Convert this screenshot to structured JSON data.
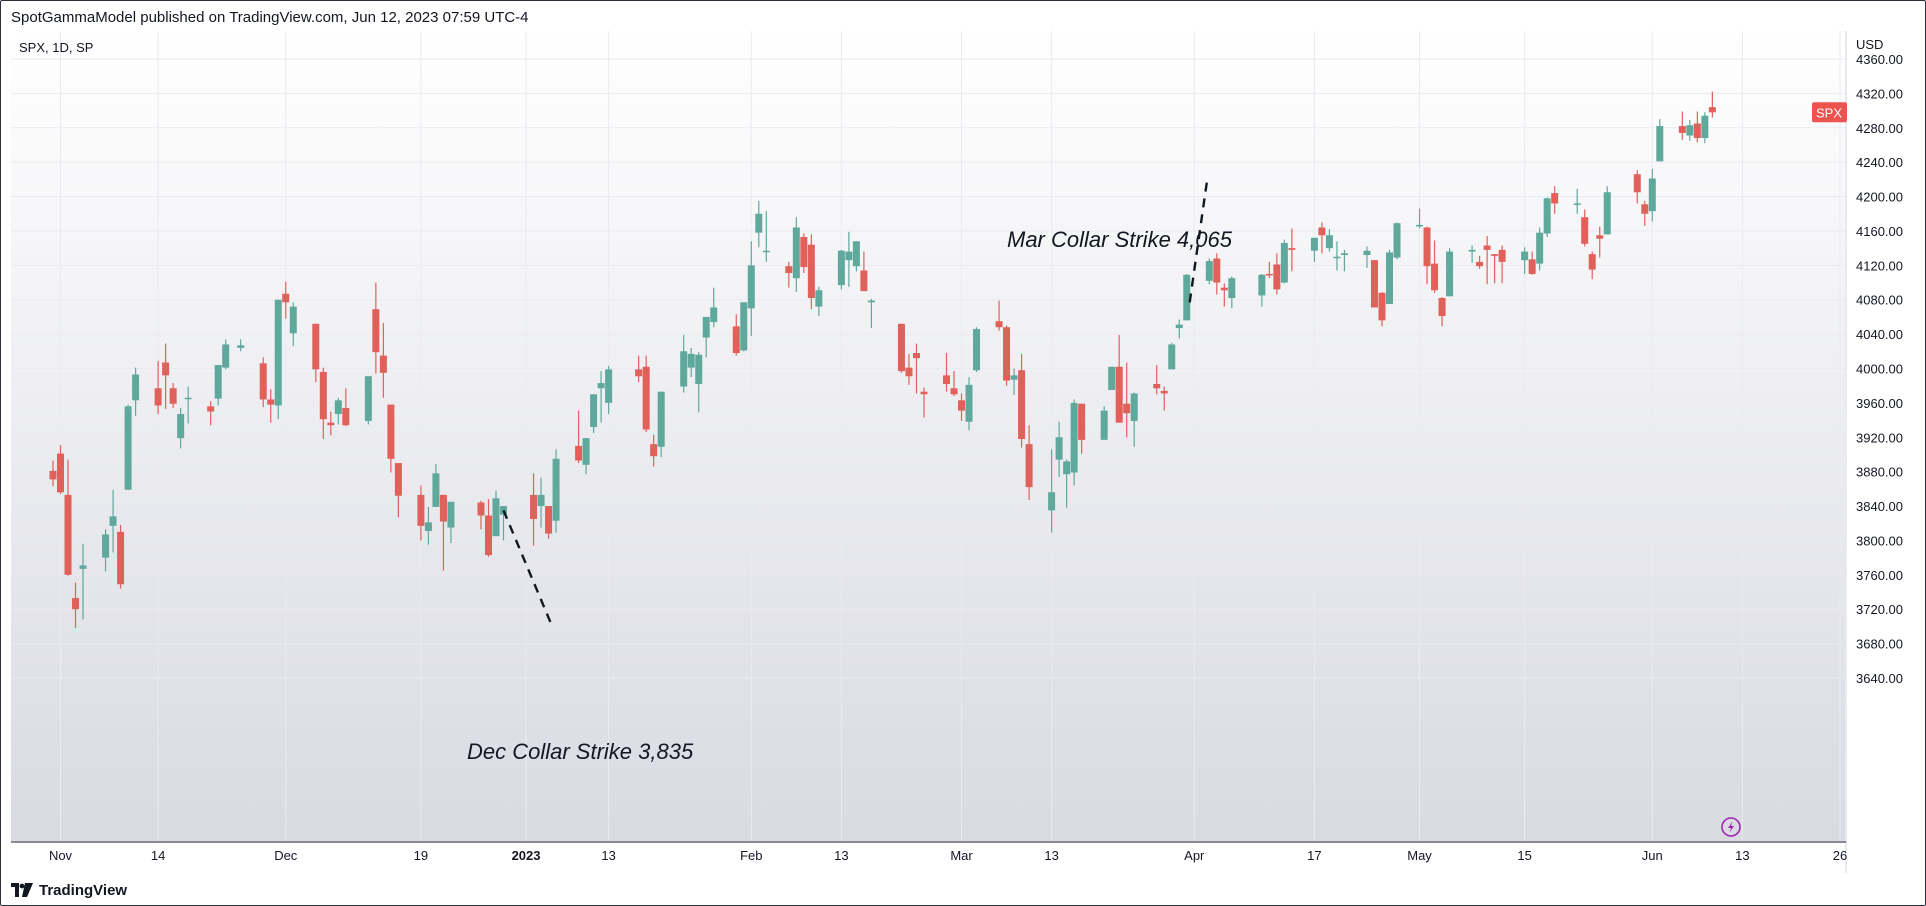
{
  "header": {
    "published": "SpotGammaModel published on TradingView.com, Jun 12, 2023 07:59 UTC-4"
  },
  "footer": {
    "brand": "TradingView",
    "logo_icon": "tradingview-logo-icon"
  },
  "legend": {
    "symbol": "SPX, 1D, SP"
  },
  "price_axis": {
    "currency": "USD",
    "ticks": [
      "4360.00",
      "4320.00",
      "4280.00",
      "4240.00",
      "4200.00",
      "4160.00",
      "4120.00",
      "4080.00",
      "4040.00",
      "4000.00",
      "3960.00",
      "3920.00",
      "3880.00",
      "3840.00",
      "3800.00",
      "3760.00",
      "3720.00",
      "3680.00",
      "3640.00"
    ]
  },
  "price_label": {
    "text": "SPX",
    "color": "#ef5350"
  },
  "time_axis": {
    "labels": [
      "Nov",
      "14",
      "Dec",
      "19",
      "2023",
      "13",
      "Feb",
      "13",
      "Mar",
      "13",
      "Apr",
      "17",
      "May",
      "15",
      "Jun",
      "13",
      "26"
    ]
  },
  "annotations": {
    "dec": "Dec Collar Strike 3,835",
    "mar": "Mar Collar Strike 4,065"
  },
  "colors": {
    "up": "#5fa89c",
    "down": "#e0605a",
    "grid": "#e9ebf0",
    "text": "#131722",
    "bg_top": "#ffffff",
    "bg_bottom": "#d9dae2"
  },
  "chart_data": {
    "type": "candlestick",
    "symbol": "SPX",
    "interval": "1D",
    "ylabel": "USD",
    "ylim": [
      3640,
      4360
    ],
    "xlim": [
      "2022-10-31",
      "2023-06-26"
    ],
    "grid": true,
    "annotations": [
      {
        "text": "Dec Collar Strike 3,835",
        "points_to": "2022-12-30",
        "value": 3835
      },
      {
        "text": "Mar Collar Strike 4,065",
        "points_to": "2023-03-31",
        "value": 4065
      }
    ],
    "candles": [
      {
        "d": "2022-10-31",
        "o": 3881,
        "h": 3893,
        "l": 3863,
        "c": 3871
      },
      {
        "d": "2022-11-01",
        "o": 3901,
        "h": 3911,
        "l": 3854,
        "c": 3856
      },
      {
        "d": "2022-11-02",
        "o": 3853,
        "h": 3894,
        "l": 3759,
        "c": 3760
      },
      {
        "d": "2022-11-03",
        "o": 3733,
        "h": 3751,
        "l": 3698,
        "c": 3720
      },
      {
        "d": "2022-11-04",
        "o": 3767,
        "h": 3796,
        "l": 3708,
        "c": 3771
      },
      {
        "d": "2022-11-07",
        "o": 3780,
        "h": 3813,
        "l": 3764,
        "c": 3807
      },
      {
        "d": "2022-11-08",
        "o": 3817,
        "h": 3859,
        "l": 3786,
        "c": 3828
      },
      {
        "d": "2022-11-09",
        "o": 3810,
        "h": 3818,
        "l": 3744,
        "c": 3749
      },
      {
        "d": "2022-11-10",
        "o": 3859,
        "h": 3958,
        "l": 3859,
        "c": 3956
      },
      {
        "d": "2022-11-11",
        "o": 3963,
        "h": 4001,
        "l": 3945,
        "c": 3993
      },
      {
        "d": "2022-11-14",
        "o": 3977,
        "h": 4009,
        "l": 3947,
        "c": 3957
      },
      {
        "d": "2022-11-15",
        "o": 4007,
        "h": 4029,
        "l": 3953,
        "c": 3992
      },
      {
        "d": "2022-11-16",
        "o": 3977,
        "h": 3983,
        "l": 3954,
        "c": 3959
      },
      {
        "d": "2022-11-17",
        "o": 3919,
        "h": 3954,
        "l": 3907,
        "c": 3947
      },
      {
        "d": "2022-11-18",
        "o": 3966,
        "h": 3979,
        "l": 3936,
        "c": 3966
      },
      {
        "d": "2022-11-21",
        "o": 3956,
        "h": 3962,
        "l": 3934,
        "c": 3950
      },
      {
        "d": "2022-11-22",
        "o": 3965,
        "h": 4004,
        "l": 3957,
        "c": 4004
      },
      {
        "d": "2022-11-23",
        "o": 4001,
        "h": 4034,
        "l": 3999,
        "c": 4028
      },
      {
        "d": "2022-11-25",
        "o": 4024,
        "h": 4034,
        "l": 4020,
        "c": 4027
      },
      {
        "d": "2022-11-28",
        "o": 4006,
        "h": 4013,
        "l": 3955,
        "c": 3964
      },
      {
        "d": "2022-11-29",
        "o": 3964,
        "h": 3976,
        "l": 3937,
        "c": 3958
      },
      {
        "d": "2022-11-30",
        "o": 3957,
        "h": 4080,
        "l": 3941,
        "c": 4080
      },
      {
        "d": "2022-12-01",
        "o": 4087,
        "h": 4101,
        "l": 4058,
        "c": 4077
      },
      {
        "d": "2022-12-02",
        "o": 4041,
        "h": 4077,
        "l": 4026,
        "c": 4072
      },
      {
        "d": "2022-12-05",
        "o": 4052,
        "h": 4052,
        "l": 3984,
        "c": 3999
      },
      {
        "d": "2022-12-06",
        "o": 3996,
        "h": 4001,
        "l": 3918,
        "c": 3941
      },
      {
        "d": "2022-12-07",
        "o": 3937,
        "h": 3950,
        "l": 3922,
        "c": 3934
      },
      {
        "d": "2022-12-08",
        "o": 3947,
        "h": 3966,
        "l": 3935,
        "c": 3963
      },
      {
        "d": "2022-12-09",
        "o": 3954,
        "h": 3977,
        "l": 3933,
        "c": 3934
      },
      {
        "d": "2022-12-12",
        "o": 3939,
        "h": 3991,
        "l": 3935,
        "c": 3991
      },
      {
        "d": "2022-12-13",
        "o": 4069,
        "h": 4100,
        "l": 3994,
        "c": 4019
      },
      {
        "d": "2022-12-14",
        "o": 4015,
        "h": 4053,
        "l": 3966,
        "c": 3995
      },
      {
        "d": "2022-12-15",
        "o": 3958,
        "h": 3958,
        "l": 3879,
        "c": 3895
      },
      {
        "d": "2022-12-16",
        "o": 3890,
        "h": 3890,
        "l": 3827,
        "c": 3852
      },
      {
        "d": "2022-12-19",
        "o": 3853,
        "h": 3864,
        "l": 3800,
        "c": 3817
      },
      {
        "d": "2022-12-20",
        "o": 3811,
        "h": 3839,
        "l": 3795,
        "c": 3821
      },
      {
        "d": "2022-12-21",
        "o": 3839,
        "h": 3889,
        "l": 3839,
        "c": 3878
      },
      {
        "d": "2022-12-22",
        "o": 3853,
        "h": 3853,
        "l": 3765,
        "c": 3822
      },
      {
        "d": "2022-12-23",
        "o": 3815,
        "h": 3845,
        "l": 3797,
        "c": 3845
      },
      {
        "d": "2022-12-27",
        "o": 3844,
        "h": 3846,
        "l": 3813,
        "c": 3829
      },
      {
        "d": "2022-12-28",
        "o": 3829,
        "h": 3848,
        "l": 3781,
        "c": 3783
      },
      {
        "d": "2022-12-29",
        "o": 3805,
        "h": 3858,
        "l": 3805,
        "c": 3849
      },
      {
        "d": "2022-12-30",
        "o": 3830,
        "h": 3840,
        "l": 3800,
        "c": 3840
      },
      {
        "d": "2023-01-03",
        "o": 3853,
        "h": 3878,
        "l": 3794,
        "c": 3825
      },
      {
        "d": "2023-01-04",
        "o": 3840,
        "h": 3873,
        "l": 3815,
        "c": 3853
      },
      {
        "d": "2023-01-05",
        "o": 3840,
        "h": 3840,
        "l": 3802,
        "c": 3808
      },
      {
        "d": "2023-01-06",
        "o": 3823,
        "h": 3906,
        "l": 3809,
        "c": 3895
      },
      {
        "d": "2023-01-09",
        "o": 3910,
        "h": 3951,
        "l": 3890,
        "c": 3893
      },
      {
        "d": "2023-01-10",
        "o": 3888,
        "h": 3919,
        "l": 3877,
        "c": 3919
      },
      {
        "d": "2023-01-11",
        "o": 3932,
        "h": 3970,
        "l": 3925,
        "c": 3970
      },
      {
        "d": "2023-01-12",
        "o": 3977,
        "h": 3997,
        "l": 3937,
        "c": 3983
      },
      {
        "d": "2023-01-13",
        "o": 3960,
        "h": 4003,
        "l": 3947,
        "c": 3999
      },
      {
        "d": "2023-01-17",
        "o": 3999,
        "h": 4015,
        "l": 3984,
        "c": 3991
      },
      {
        "d": "2023-01-18",
        "o": 4002,
        "h": 4015,
        "l": 3926,
        "c": 3929
      },
      {
        "d": "2023-01-19",
        "o": 3912,
        "h": 3923,
        "l": 3886,
        "c": 3898
      },
      {
        "d": "2023-01-20",
        "o": 3909,
        "h": 3973,
        "l": 3897,
        "c": 3973
      },
      {
        "d": "2023-01-23",
        "o": 3979,
        "h": 4039,
        "l": 3972,
        "c": 4020
      },
      {
        "d": "2023-01-24",
        "o": 4001,
        "h": 4024,
        "l": 3990,
        "c": 4017
      },
      {
        "d": "2023-01-25",
        "o": 3982,
        "h": 4019,
        "l": 3949,
        "c": 4016
      },
      {
        "d": "2023-01-26",
        "o": 4036,
        "h": 4060,
        "l": 4013,
        "c": 4060
      },
      {
        "d": "2023-01-27",
        "o": 4054,
        "h": 4094,
        "l": 4048,
        "c": 4071
      },
      {
        "d": "2023-01-30",
        "o": 4049,
        "h": 4063,
        "l": 4015,
        "c": 4018
      },
      {
        "d": "2023-01-31",
        "o": 4021,
        "h": 4077,
        "l": 4020,
        "c": 4077
      },
      {
        "d": "2023-02-01",
        "o": 4070,
        "h": 4148,
        "l": 4038,
        "c": 4120
      },
      {
        "d": "2023-02-02",
        "o": 4158,
        "h": 4195,
        "l": 4141,
        "c": 4180
      },
      {
        "d": "2023-02-03",
        "o": 4136,
        "h": 4183,
        "l": 4124,
        "c": 4137
      },
      {
        "d": "2023-02-06",
        "o": 4119,
        "h": 4124,
        "l": 4094,
        "c": 4111
      },
      {
        "d": "2023-02-07",
        "o": 4105,
        "h": 4176,
        "l": 4089,
        "c": 4164
      },
      {
        "d": "2023-02-08",
        "o": 4153,
        "h": 4157,
        "l": 4111,
        "c": 4118
      },
      {
        "d": "2023-02-09",
        "o": 4144,
        "h": 4156,
        "l": 4069,
        "c": 4082
      },
      {
        "d": "2023-02-10",
        "o": 4072,
        "h": 4095,
        "l": 4061,
        "c": 4091
      },
      {
        "d": "2023-02-13",
        "o": 4097,
        "h": 4138,
        "l": 4092,
        "c": 4137
      },
      {
        "d": "2023-02-14",
        "o": 4126,
        "h": 4159,
        "l": 4095,
        "c": 4136
      },
      {
        "d": "2023-02-15",
        "o": 4119,
        "h": 4148,
        "l": 4113,
        "c": 4148
      },
      {
        "d": "2023-02-16",
        "o": 4114,
        "h": 4136,
        "l": 4091,
        "c": 4090
      },
      {
        "d": "2023-02-17",
        "o": 4077,
        "h": 4081,
        "l": 4047,
        "c": 4079
      },
      {
        "d": "2023-02-21",
        "o": 4052,
        "h": 4052,
        "l": 3995,
        "c": 3997
      },
      {
        "d": "2023-02-22",
        "o": 4001,
        "h": 4017,
        "l": 3981,
        "c": 3991
      },
      {
        "d": "2023-02-23",
        "o": 4018,
        "h": 4029,
        "l": 3971,
        "c": 4012
      },
      {
        "d": "2023-02-24",
        "o": 3973,
        "h": 3978,
        "l": 3943,
        "c": 3970
      },
      {
        "d": "2023-02-27",
        "o": 3992,
        "h": 4018,
        "l": 3973,
        "c": 3982
      },
      {
        "d": "2023-02-28",
        "o": 3977,
        "h": 3997,
        "l": 3968,
        "c": 3970
      },
      {
        "d": "2023-03-01",
        "o": 3963,
        "h": 3971,
        "l": 3939,
        "c": 3951
      },
      {
        "d": "2023-03-02",
        "o": 3938,
        "h": 3990,
        "l": 3928,
        "c": 3981
      },
      {
        "d": "2023-03-03",
        "o": 3998,
        "h": 4048,
        "l": 3996,
        "c": 4046
      },
      {
        "d": "2023-03-06",
        "o": 4055,
        "h": 4079,
        "l": 4044,
        "c": 4048
      },
      {
        "d": "2023-03-07",
        "o": 4048,
        "h": 4050,
        "l": 3980,
        "c": 3986
      },
      {
        "d": "2023-03-08",
        "o": 3987,
        "h": 4000,
        "l": 3969,
        "c": 3992
      },
      {
        "d": "2023-03-09",
        "o": 3998,
        "h": 4017,
        "l": 3908,
        "c": 3918
      },
      {
        "d": "2023-03-10",
        "o": 3912,
        "h": 3934,
        "l": 3847,
        "c": 3862
      },
      {
        "d": "2023-03-13",
        "o": 3835,
        "h": 3906,
        "l": 3809,
        "c": 3856
      },
      {
        "d": "2023-03-14",
        "o": 3894,
        "h": 3938,
        "l": 3874,
        "c": 3920
      },
      {
        "d": "2023-03-15",
        "o": 3877,
        "h": 3894,
        "l": 3838,
        "c": 3892
      },
      {
        "d": "2023-03-16",
        "o": 3879,
        "h": 3964,
        "l": 3864,
        "c": 3960
      },
      {
        "d": "2023-03-17",
        "o": 3959,
        "h": 3959,
        "l": 3901,
        "c": 3917
      },
      {
        "d": "2023-03-20",
        "o": 3917,
        "h": 3956,
        "l": 3917,
        "c": 3951
      },
      {
        "d": "2023-03-21",
        "o": 3975,
        "h": 4002,
        "l": 3975,
        "c": 4002
      },
      {
        "d": "2023-03-22",
        "o": 4002,
        "h": 4039,
        "l": 3937,
        "c": 3937
      },
      {
        "d": "2023-03-23",
        "o": 3959,
        "h": 4007,
        "l": 3920,
        "c": 3948
      },
      {
        "d": "2023-03-24",
        "o": 3939,
        "h": 3972,
        "l": 3909,
        "c": 3971
      },
      {
        "d": "2023-03-27",
        "o": 3982,
        "h": 4004,
        "l": 3970,
        "c": 3977
      },
      {
        "d": "2023-03-28",
        "o": 3974,
        "h": 3979,
        "l": 3951,
        "c": 3971
      },
      {
        "d": "2023-03-29",
        "o": 3999,
        "h": 4030,
        "l": 3999,
        "c": 4028
      },
      {
        "d": "2023-03-30",
        "o": 4047,
        "h": 4057,
        "l": 4035,
        "c": 4051
      },
      {
        "d": "2023-03-31",
        "o": 4056,
        "h": 4110,
        "l": 4056,
        "c": 4109
      },
      {
        "d": "2023-04-03",
        "o": 4102,
        "h": 4128,
        "l": 4098,
        "c": 4125
      },
      {
        "d": "2023-04-04",
        "o": 4128,
        "h": 4134,
        "l": 4086,
        "c": 4100
      },
      {
        "d": "2023-04-05",
        "o": 4094,
        "h": 4099,
        "l": 4072,
        "c": 4091
      },
      {
        "d": "2023-04-06",
        "o": 4082,
        "h": 4107,
        "l": 4070,
        "c": 4105
      },
      {
        "d": "2023-04-10",
        "o": 4085,
        "h": 4110,
        "l": 4072,
        "c": 4109
      },
      {
        "d": "2023-04-11",
        "o": 4110,
        "h": 4124,
        "l": 4105,
        "c": 4109
      },
      {
        "d": "2023-04-12",
        "o": 4121,
        "h": 4134,
        "l": 4086,
        "c": 4092
      },
      {
        "d": "2023-04-13",
        "o": 4100,
        "h": 4150,
        "l": 4099,
        "c": 4146
      },
      {
        "d": "2023-04-14",
        "o": 4140,
        "h": 4163,
        "l": 4113,
        "c": 4138
      },
      {
        "d": "2023-04-17",
        "o": 4137,
        "h": 4152,
        "l": 4124,
        "c": 4152
      },
      {
        "d": "2023-04-18",
        "o": 4164,
        "h": 4170,
        "l": 4134,
        "c": 4155
      },
      {
        "d": "2023-04-19",
        "o": 4140,
        "h": 4162,
        "l": 4136,
        "c": 4155
      },
      {
        "d": "2023-04-20",
        "o": 4130,
        "h": 4148,
        "l": 4114,
        "c": 4130
      },
      {
        "d": "2023-04-21",
        "o": 4132,
        "h": 4138,
        "l": 4113,
        "c": 4134
      },
      {
        "d": "2023-04-24",
        "o": 4132,
        "h": 4142,
        "l": 4117,
        "c": 4137
      },
      {
        "d": "2023-04-25",
        "o": 4126,
        "h": 4126,
        "l": 4071,
        "c": 4071
      },
      {
        "d": "2023-04-26",
        "o": 4088,
        "h": 4089,
        "l": 4049,
        "c": 4056
      },
      {
        "d": "2023-04-27",
        "o": 4075,
        "h": 4138,
        "l": 4075,
        "c": 4135
      },
      {
        "d": "2023-04-28",
        "o": 4129,
        "h": 4170,
        "l": 4127,
        "c": 4169
      },
      {
        "d": "2023-05-01",
        "o": 4166,
        "h": 4186,
        "l": 4163,
        "c": 4167
      },
      {
        "d": "2023-05-02",
        "o": 4164,
        "h": 4165,
        "l": 4098,
        "c": 4119
      },
      {
        "d": "2023-05-03",
        "o": 4122,
        "h": 4149,
        "l": 4088,
        "c": 4091
      },
      {
        "d": "2023-05-04",
        "o": 4082,
        "h": 4083,
        "l": 4049,
        "c": 4061
      },
      {
        "d": "2023-05-05",
        "o": 4084,
        "h": 4140,
        "l": 4084,
        "c": 4136
      },
      {
        "d": "2023-05-08",
        "o": 4136,
        "h": 4143,
        "l": 4123,
        "c": 4138
      },
      {
        "d": "2023-05-09",
        "o": 4124,
        "h": 4131,
        "l": 4116,
        "c": 4119
      },
      {
        "d": "2023-05-10",
        "o": 4143,
        "h": 4154,
        "l": 4098,
        "c": 4138
      },
      {
        "d": "2023-05-11",
        "o": 4133,
        "h": 4133,
        "l": 4099,
        "c": 4131
      },
      {
        "d": "2023-05-12",
        "o": 4138,
        "h": 4143,
        "l": 4099,
        "c": 4124
      },
      {
        "d": "2023-05-15",
        "o": 4126,
        "h": 4141,
        "l": 4110,
        "c": 4136
      },
      {
        "d": "2023-05-16",
        "o": 4127,
        "h": 4136,
        "l": 4109,
        "c": 4110
      },
      {
        "d": "2023-05-17",
        "o": 4122,
        "h": 4164,
        "l": 4114,
        "c": 4158
      },
      {
        "d": "2023-05-18",
        "o": 4157,
        "h": 4199,
        "l": 4153,
        "c": 4198
      },
      {
        "d": "2023-05-19",
        "o": 4204,
        "h": 4212,
        "l": 4180,
        "c": 4192
      },
      {
        "d": "2023-05-22",
        "o": 4191,
        "h": 4209,
        "l": 4180,
        "c": 4192
      },
      {
        "d": "2023-05-23",
        "o": 4176,
        "h": 4185,
        "l": 4142,
        "c": 4145
      },
      {
        "d": "2023-05-24",
        "o": 4133,
        "h": 4136,
        "l": 4104,
        "c": 4115
      },
      {
        "d": "2023-05-25",
        "o": 4155,
        "h": 4165,
        "l": 4129,
        "c": 4151
      },
      {
        "d": "2023-05-26",
        "o": 4156,
        "h": 4212,
        "l": 4156,
        "c": 4205
      },
      {
        "d": "2023-05-30",
        "o": 4226,
        "h": 4231,
        "l": 4192,
        "c": 4205
      },
      {
        "d": "2023-05-31",
        "o": 4191,
        "h": 4195,
        "l": 4166,
        "c": 4180
      },
      {
        "d": "2023-06-01",
        "o": 4183,
        "h": 4232,
        "l": 4171,
        "c": 4221
      },
      {
        "d": "2023-06-02",
        "o": 4241,
        "h": 4290,
        "l": 4241,
        "c": 4282
      },
      {
        "d": "2023-06-05",
        "o": 4282,
        "h": 4299,
        "l": 4266,
        "c": 4274
      },
      {
        "d": "2023-06-06",
        "o": 4271,
        "h": 4289,
        "l": 4265,
        "c": 4283
      },
      {
        "d": "2023-06-07",
        "o": 4285,
        "h": 4299,
        "l": 4263,
        "c": 4268
      },
      {
        "d": "2023-06-08",
        "o": 4268,
        "h": 4298,
        "l": 4262,
        "c": 4294
      },
      {
        "d": "2023-06-09",
        "o": 4304,
        "h": 4322,
        "l": 4292,
        "c": 4298
      }
    ]
  }
}
